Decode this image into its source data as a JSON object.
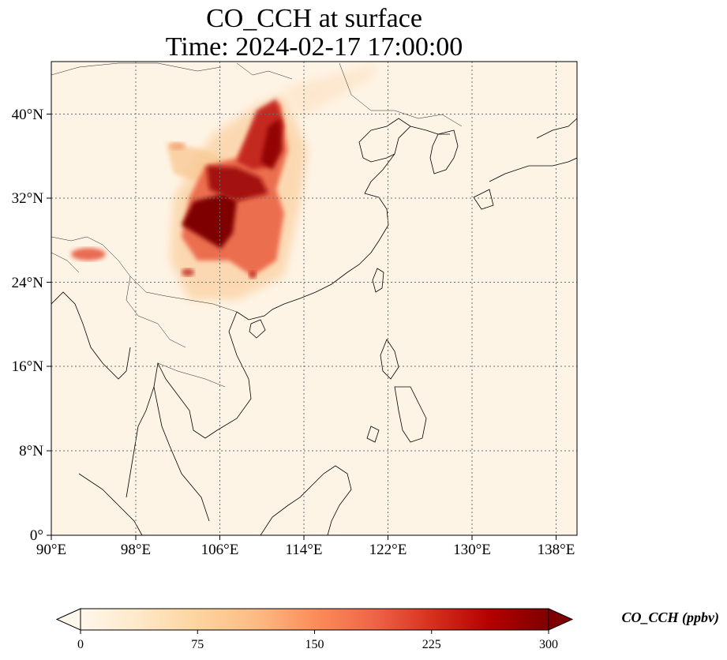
{
  "title": {
    "line1": "CO_CCH at surface",
    "line2": "Time: 2024-02-17 17:00:00"
  },
  "map": {
    "lon_range": [
      90,
      140
    ],
    "lat_range": [
      0,
      45
    ],
    "gridlines": "dotted",
    "lat_ticks": [
      "0°",
      "8°N",
      "16°N",
      "24°N",
      "32°N",
      "40°N"
    ],
    "lat_values": [
      0,
      8,
      16,
      24,
      32,
      40
    ],
    "lon_ticks": [
      "90°E",
      "98°E",
      "106°E",
      "114°E",
      "122°E",
      "130°E",
      "138°E"
    ],
    "lon_values": [
      90,
      98,
      106,
      114,
      122,
      130,
      138
    ],
    "field": "CO_CCH",
    "high_concentration_region": "Sichuan Basin / central China"
  },
  "colorbar": {
    "label": "CO_CCH (ppbv)",
    "ticks": [
      "0",
      "75",
      "150",
      "225",
      "300"
    ],
    "min": 0,
    "max": 300,
    "extend": "both",
    "colormap": "OrRd",
    "colors": [
      "#fff7ec",
      "#fee8c8",
      "#fdd49e",
      "#fdbb84",
      "#fc8d59",
      "#ef6548",
      "#d7301f",
      "#b30000",
      "#7f0000"
    ]
  }
}
